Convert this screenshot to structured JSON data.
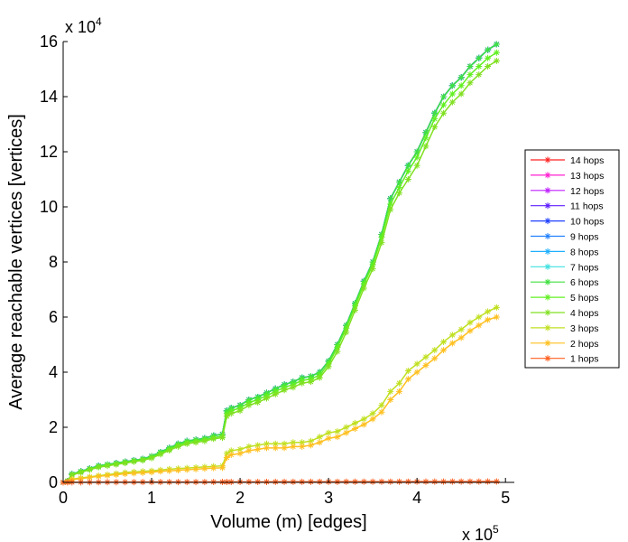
{
  "chart_data": {
    "type": "line",
    "title": "",
    "xlabel": "Volume (m) [edges]",
    "ylabel": "Average reachable vertices [vertices]",
    "x_multiplier": {
      "base": "x 10",
      "exp": "5"
    },
    "y_multiplier": {
      "base": "x 10",
      "exp": "4"
    },
    "xlim": [
      0,
      5.1
    ],
    "ylim": [
      0,
      16
    ],
    "xticks": [
      0,
      1,
      2,
      3,
      4,
      5
    ],
    "yticks": [
      0,
      2,
      4,
      6,
      8,
      10,
      12,
      14,
      16
    ],
    "grid": false,
    "legend_position": "right",
    "x": [
      0,
      0.05,
      0.1,
      0.2,
      0.3,
      0.4,
      0.5,
      0.6,
      0.7,
      0.8,
      0.9,
      1.0,
      1.1,
      1.2,
      1.3,
      1.4,
      1.5,
      1.6,
      1.7,
      1.8,
      1.85,
      1.9,
      2.0,
      2.1,
      2.2,
      2.3,
      2.4,
      2.5,
      2.6,
      2.7,
      2.8,
      2.9,
      3.0,
      3.1,
      3.2,
      3.3,
      3.4,
      3.5,
      3.6,
      3.7,
      3.8,
      3.9,
      4.0,
      4.1,
      4.2,
      4.3,
      4.4,
      4.5,
      4.6,
      4.7,
      4.8,
      4.9
    ],
    "series": [
      {
        "name": "14 hops",
        "color": "#ff2020",
        "values": [
          0,
          0.05,
          0.3,
          0.4,
          0.5,
          0.6,
          0.65,
          0.7,
          0.75,
          0.8,
          0.85,
          0.95,
          1.1,
          1.25,
          1.4,
          1.5,
          1.55,
          1.6,
          1.7,
          1.75,
          2.6,
          2.7,
          2.8,
          3.0,
          3.1,
          3.25,
          3.4,
          3.55,
          3.65,
          3.8,
          3.85,
          4.0,
          4.4,
          5.0,
          5.7,
          6.5,
          7.3,
          8.0,
          9.0,
          10.3,
          10.9,
          11.5,
          12.0,
          12.7,
          13.4,
          14.0,
          14.4,
          14.7,
          15.1,
          15.4,
          15.7,
          15.9
        ]
      },
      {
        "name": "13 hops",
        "color": "#ff20d0",
        "values": [
          0,
          0.05,
          0.3,
          0.4,
          0.5,
          0.6,
          0.65,
          0.7,
          0.75,
          0.8,
          0.85,
          0.95,
          1.1,
          1.25,
          1.4,
          1.5,
          1.55,
          1.6,
          1.7,
          1.75,
          2.6,
          2.7,
          2.8,
          3.0,
          3.1,
          3.25,
          3.4,
          3.55,
          3.65,
          3.8,
          3.85,
          4.0,
          4.4,
          5.0,
          5.7,
          6.5,
          7.3,
          8.0,
          9.0,
          10.3,
          10.9,
          11.5,
          12.0,
          12.7,
          13.4,
          14.0,
          14.4,
          14.7,
          15.1,
          15.4,
          15.7,
          15.9
        ]
      },
      {
        "name": "12 hops",
        "color": "#c020ff",
        "values": [
          0,
          0.05,
          0.3,
          0.4,
          0.5,
          0.6,
          0.65,
          0.7,
          0.75,
          0.8,
          0.85,
          0.95,
          1.1,
          1.25,
          1.4,
          1.5,
          1.55,
          1.6,
          1.7,
          1.75,
          2.6,
          2.7,
          2.8,
          3.0,
          3.1,
          3.25,
          3.4,
          3.55,
          3.65,
          3.8,
          3.85,
          4.0,
          4.4,
          5.0,
          5.7,
          6.5,
          7.3,
          8.0,
          9.0,
          10.3,
          10.9,
          11.5,
          12.0,
          12.7,
          13.4,
          14.0,
          14.4,
          14.7,
          15.1,
          15.4,
          15.7,
          15.9
        ]
      },
      {
        "name": "11 hops",
        "color": "#6020ff",
        "values": [
          0,
          0.05,
          0.3,
          0.4,
          0.5,
          0.6,
          0.65,
          0.7,
          0.75,
          0.8,
          0.85,
          0.95,
          1.1,
          1.25,
          1.4,
          1.5,
          1.55,
          1.6,
          1.7,
          1.75,
          2.6,
          2.7,
          2.8,
          3.0,
          3.1,
          3.25,
          3.4,
          3.55,
          3.65,
          3.8,
          3.85,
          4.0,
          4.4,
          5.0,
          5.7,
          6.5,
          7.3,
          8.0,
          9.0,
          10.3,
          10.9,
          11.5,
          12.0,
          12.7,
          13.4,
          14.0,
          14.4,
          14.7,
          15.1,
          15.4,
          15.7,
          15.9
        ]
      },
      {
        "name": "10 hops",
        "color": "#2040ff",
        "values": [
          0,
          0.05,
          0.3,
          0.4,
          0.5,
          0.6,
          0.65,
          0.7,
          0.75,
          0.8,
          0.85,
          0.95,
          1.1,
          1.25,
          1.4,
          1.5,
          1.55,
          1.6,
          1.7,
          1.75,
          2.6,
          2.7,
          2.8,
          3.0,
          3.1,
          3.25,
          3.4,
          3.55,
          3.65,
          3.8,
          3.85,
          4.0,
          4.4,
          5.0,
          5.7,
          6.5,
          7.3,
          8.0,
          9.0,
          10.3,
          10.9,
          11.5,
          12.0,
          12.7,
          13.4,
          14.0,
          14.4,
          14.7,
          15.1,
          15.4,
          15.7,
          15.9
        ]
      },
      {
        "name": "9 hops",
        "color": "#2080ff",
        "values": [
          0,
          0.05,
          0.3,
          0.4,
          0.5,
          0.6,
          0.65,
          0.7,
          0.75,
          0.8,
          0.85,
          0.95,
          1.1,
          1.25,
          1.4,
          1.5,
          1.55,
          1.6,
          1.7,
          1.75,
          2.6,
          2.7,
          2.8,
          3.0,
          3.1,
          3.25,
          3.4,
          3.55,
          3.65,
          3.8,
          3.85,
          4.0,
          4.4,
          5.0,
          5.7,
          6.5,
          7.3,
          8.0,
          9.0,
          10.3,
          10.9,
          11.5,
          12.0,
          12.7,
          13.4,
          14.0,
          14.4,
          14.7,
          15.1,
          15.4,
          15.7,
          15.9
        ]
      },
      {
        "name": "8 hops",
        "color": "#20b0ff",
        "values": [
          0,
          0.05,
          0.3,
          0.4,
          0.5,
          0.6,
          0.65,
          0.7,
          0.75,
          0.8,
          0.85,
          0.95,
          1.1,
          1.25,
          1.4,
          1.5,
          1.55,
          1.6,
          1.7,
          1.75,
          2.6,
          2.7,
          2.8,
          3.0,
          3.1,
          3.25,
          3.4,
          3.55,
          3.65,
          3.8,
          3.85,
          4.0,
          4.4,
          5.0,
          5.7,
          6.5,
          7.3,
          8.0,
          9.0,
          10.3,
          10.9,
          11.5,
          12.0,
          12.7,
          13.4,
          14.0,
          14.4,
          14.7,
          15.1,
          15.4,
          15.7,
          15.9
        ]
      },
      {
        "name": "7 hops",
        "color": "#40e0e0",
        "values": [
          0,
          0.05,
          0.3,
          0.4,
          0.5,
          0.6,
          0.65,
          0.7,
          0.75,
          0.8,
          0.85,
          0.95,
          1.1,
          1.25,
          1.4,
          1.5,
          1.55,
          1.6,
          1.7,
          1.75,
          2.6,
          2.7,
          2.8,
          3.0,
          3.1,
          3.25,
          3.4,
          3.55,
          3.65,
          3.8,
          3.85,
          4.0,
          4.4,
          5.0,
          5.7,
          6.5,
          7.3,
          8.0,
          9.0,
          10.3,
          10.9,
          11.5,
          12.0,
          12.7,
          13.4,
          14.0,
          14.4,
          14.7,
          15.1,
          15.4,
          15.7,
          15.9
        ]
      },
      {
        "name": "6 hops",
        "color": "#40e040",
        "values": [
          0,
          0.05,
          0.3,
          0.4,
          0.5,
          0.6,
          0.65,
          0.7,
          0.75,
          0.8,
          0.85,
          0.95,
          1.1,
          1.25,
          1.4,
          1.5,
          1.55,
          1.6,
          1.7,
          1.75,
          2.6,
          2.7,
          2.8,
          3.0,
          3.1,
          3.25,
          3.4,
          3.55,
          3.65,
          3.8,
          3.85,
          4.0,
          4.4,
          5.0,
          5.7,
          6.5,
          7.3,
          8.0,
          9.0,
          10.3,
          10.9,
          11.5,
          12.0,
          12.7,
          13.4,
          14.0,
          14.4,
          14.7,
          15.1,
          15.4,
          15.7,
          15.9
        ]
      },
      {
        "name": "5 hops",
        "color": "#60f020",
        "values": [
          0,
          0.05,
          0.28,
          0.38,
          0.48,
          0.57,
          0.62,
          0.67,
          0.72,
          0.77,
          0.82,
          0.9,
          1.05,
          1.2,
          1.35,
          1.45,
          1.5,
          1.55,
          1.62,
          1.68,
          2.5,
          2.6,
          2.7,
          2.9,
          3.0,
          3.15,
          3.3,
          3.45,
          3.55,
          3.7,
          3.75,
          3.9,
          4.3,
          4.9,
          5.6,
          6.4,
          7.2,
          7.9,
          8.9,
          10.1,
          10.7,
          11.3,
          11.8,
          12.5,
          13.2,
          13.7,
          14.1,
          14.4,
          14.8,
          15.1,
          15.4,
          15.6
        ]
      },
      {
        "name": "4 hops",
        "color": "#80e020",
        "values": [
          0,
          0.05,
          0.27,
          0.36,
          0.46,
          0.55,
          0.6,
          0.65,
          0.7,
          0.75,
          0.8,
          0.88,
          1.02,
          1.16,
          1.3,
          1.4,
          1.45,
          1.5,
          1.58,
          1.62,
          2.4,
          2.5,
          2.6,
          2.8,
          2.9,
          3.05,
          3.2,
          3.35,
          3.45,
          3.6,
          3.65,
          3.8,
          4.2,
          4.75,
          5.45,
          6.25,
          7.05,
          7.75,
          8.7,
          9.9,
          10.5,
          11.0,
          11.5,
          12.2,
          12.9,
          13.4,
          13.8,
          14.1,
          14.5,
          14.8,
          15.1,
          15.3
        ]
      },
      {
        "name": "3 hops",
        "color": "#c0e020",
        "values": [
          0,
          0.02,
          0.12,
          0.16,
          0.2,
          0.24,
          0.28,
          0.32,
          0.36,
          0.38,
          0.4,
          0.42,
          0.45,
          0.48,
          0.5,
          0.52,
          0.54,
          0.56,
          0.58,
          0.6,
          1.05,
          1.15,
          1.2,
          1.3,
          1.35,
          1.4,
          1.4,
          1.4,
          1.45,
          1.45,
          1.5,
          1.65,
          1.8,
          1.85,
          2.0,
          2.15,
          2.3,
          2.5,
          2.8,
          3.3,
          3.6,
          4.05,
          4.3,
          4.55,
          4.8,
          5.1,
          5.35,
          5.55,
          5.8,
          6.0,
          6.2,
          6.35
        ]
      },
      {
        "name": "2 hops",
        "color": "#ffc020",
        "values": [
          0,
          0.02,
          0.1,
          0.14,
          0.18,
          0.22,
          0.25,
          0.28,
          0.31,
          0.33,
          0.35,
          0.37,
          0.4,
          0.42,
          0.44,
          0.46,
          0.48,
          0.5,
          0.52,
          0.53,
          0.9,
          1.0,
          1.05,
          1.15,
          1.2,
          1.25,
          1.25,
          1.25,
          1.3,
          1.3,
          1.35,
          1.45,
          1.6,
          1.65,
          1.8,
          1.95,
          2.1,
          2.3,
          2.55,
          3.0,
          3.3,
          3.75,
          4.0,
          4.25,
          4.5,
          4.8,
          5.05,
          5.25,
          5.5,
          5.7,
          5.9,
          6.0
        ]
      },
      {
        "name": "1 hops",
        "color": "#ff6020",
        "values": [
          0,
          0.003,
          0.004,
          0.005,
          0.006,
          0.007,
          0.008,
          0.009,
          0.01,
          0.01,
          0.011,
          0.011,
          0.012,
          0.012,
          0.013,
          0.013,
          0.014,
          0.014,
          0.015,
          0.015,
          0.016,
          0.016,
          0.017,
          0.017,
          0.018,
          0.018,
          0.019,
          0.019,
          0.02,
          0.02,
          0.021,
          0.021,
          0.022,
          0.022,
          0.023,
          0.023,
          0.024,
          0.024,
          0.025,
          0.025,
          0.026,
          0.026,
          0.027,
          0.027,
          0.028,
          0.028,
          0.029,
          0.029,
          0.03,
          0.03,
          0.031,
          0.031
        ]
      }
    ]
  }
}
